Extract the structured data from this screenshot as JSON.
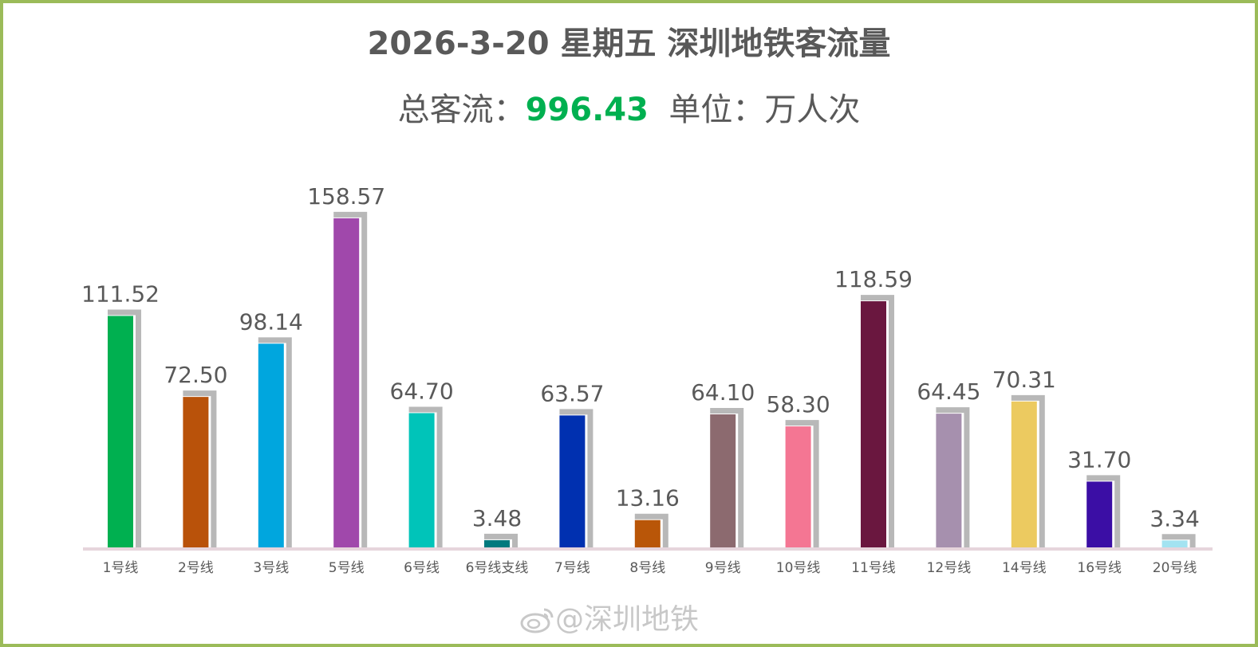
{
  "title": "2026-3-20 星期五  深圳地铁客流量",
  "subtitle": {
    "total_label": "总客流：",
    "total_value": "996.43",
    "unit_label": "单位：万人次"
  },
  "watermark": {
    "icon": "weibo-icon",
    "text": "@深圳地铁"
  },
  "colors": {
    "border": "#9bbb59",
    "total": "#00b050",
    "text": "#595959",
    "axis": "#e6d5dc",
    "shadow": "#b8b8b8"
  },
  "chart_data": {
    "type": "bar",
    "title": "2026-3-20 星期五  深圳地铁客流量",
    "ylabel": "",
    "categories": [
      "1号线",
      "2号线",
      "3号线",
      "5号线",
      "6号线",
      "6号线支线",
      "7号线",
      "8号线",
      "9号线",
      "10号线",
      "11号线",
      "12号线",
      "14号线",
      "16号线",
      "20号线"
    ],
    "values": [
      111.52,
      72.5,
      98.14,
      158.57,
      64.7,
      3.48,
      63.57,
      13.16,
      64.1,
      58.3,
      118.59,
      64.45,
      70.31,
      31.7,
      3.34
    ],
    "labels": [
      "111.52",
      "72.50",
      "98.14",
      "158.57",
      "64.70",
      "3.48",
      "63.57",
      "13.16",
      "64.10",
      "58.30",
      "118.59",
      "64.45",
      "70.31",
      "31.70",
      "3.34"
    ],
    "colors": [
      "#00b050",
      "#b9520a",
      "#00a6de",
      "#a048ab",
      "#00c4b9",
      "#007a7e",
      "#0030b0",
      "#b95608",
      "#8c6a6f",
      "#f47693",
      "#6a173f",
      "#a690ae",
      "#ecca60",
      "#3b0ea5",
      "#a3e3f1"
    ],
    "ylim": [
      0,
      160
    ],
    "grid": false,
    "legend": "none"
  }
}
